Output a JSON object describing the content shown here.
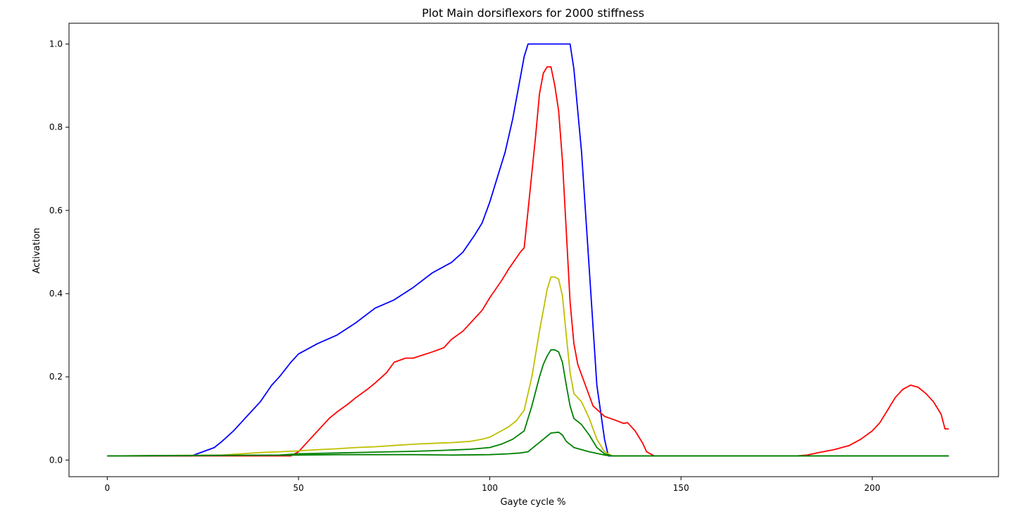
{
  "chart_data": {
    "type": "line",
    "title": "Plot Main dorsiflexors for 2000 stiffness",
    "xlabel": "Gayte cycle %",
    "ylabel": "Activation",
    "xlim": [
      -10,
      233
    ],
    "ylim": [
      -0.04,
      1.05
    ],
    "xticks": [
      0,
      50,
      100,
      150,
      200
    ],
    "yticks": [
      0.0,
      0.2,
      0.4,
      0.6,
      0.8,
      1.0
    ],
    "grid": false,
    "legend": "none",
    "series": [
      {
        "color": "#0000ff",
        "points": [
          [
            0,
            0.01
          ],
          [
            22,
            0.01
          ],
          [
            25,
            0.02
          ],
          [
            28,
            0.03
          ],
          [
            30,
            0.045
          ],
          [
            33,
            0.07
          ],
          [
            35,
            0.09
          ],
          [
            38,
            0.12
          ],
          [
            40,
            0.14
          ],
          [
            43,
            0.18
          ],
          [
            45,
            0.2
          ],
          [
            48,
            0.235
          ],
          [
            50,
            0.255
          ],
          [
            55,
            0.28
          ],
          [
            60,
            0.3
          ],
          [
            65,
            0.33
          ],
          [
            70,
            0.365
          ],
          [
            75,
            0.385
          ],
          [
            80,
            0.415
          ],
          [
            85,
            0.45
          ],
          [
            90,
            0.475
          ],
          [
            93,
            0.5
          ],
          [
            96,
            0.54
          ],
          [
            98,
            0.57
          ],
          [
            100,
            0.62
          ],
          [
            102,
            0.68
          ],
          [
            104,
            0.74
          ],
          [
            106,
            0.82
          ],
          [
            108,
            0.92
          ],
          [
            109,
            0.97
          ],
          [
            110,
            1.0
          ],
          [
            121,
            1.0
          ],
          [
            122,
            0.94
          ],
          [
            124,
            0.74
          ],
          [
            126,
            0.46
          ],
          [
            128,
            0.18
          ],
          [
            130,
            0.05
          ],
          [
            131,
            0.01
          ],
          [
            220,
            0.01
          ]
        ]
      },
      {
        "color": "#ff0000",
        "points": [
          [
            0,
            0.01
          ],
          [
            48,
            0.01
          ],
          [
            50,
            0.02
          ],
          [
            53,
            0.05
          ],
          [
            55,
            0.07
          ],
          [
            58,
            0.1
          ],
          [
            60,
            0.115
          ],
          [
            63,
            0.135
          ],
          [
            65,
            0.15
          ],
          [
            68,
            0.17
          ],
          [
            70,
            0.185
          ],
          [
            73,
            0.21
          ],
          [
            75,
            0.235
          ],
          [
            78,
            0.245
          ],
          [
            80,
            0.245
          ],
          [
            85,
            0.26
          ],
          [
            88,
            0.27
          ],
          [
            90,
            0.29
          ],
          [
            93,
            0.31
          ],
          [
            95,
            0.33
          ],
          [
            98,
            0.36
          ],
          [
            100,
            0.39
          ],
          [
            103,
            0.43
          ],
          [
            105,
            0.46
          ],
          [
            108,
            0.5
          ],
          [
            109,
            0.51
          ],
          [
            110,
            0.6
          ],
          [
            112,
            0.78
          ],
          [
            113,
            0.88
          ],
          [
            114,
            0.93
          ],
          [
            115,
            0.945
          ],
          [
            116,
            0.945
          ],
          [
            117,
            0.9
          ],
          [
            118,
            0.84
          ],
          [
            119,
            0.72
          ],
          [
            120,
            0.55
          ],
          [
            121,
            0.38
          ],
          [
            122,
            0.28
          ],
          [
            123,
            0.23
          ],
          [
            125,
            0.18
          ],
          [
            127,
            0.13
          ],
          [
            130,
            0.105
          ],
          [
            133,
            0.095
          ],
          [
            135,
            0.088
          ],
          [
            136,
            0.09
          ],
          [
            138,
            0.07
          ],
          [
            140,
            0.04
          ],
          [
            141,
            0.02
          ],
          [
            143,
            0.01
          ],
          [
            180,
            0.01
          ],
          [
            183,
            0.012
          ],
          [
            186,
            0.018
          ],
          [
            190,
            0.025
          ],
          [
            194,
            0.035
          ],
          [
            197,
            0.05
          ],
          [
            200,
            0.07
          ],
          [
            202,
            0.09
          ],
          [
            204,
            0.12
          ],
          [
            206,
            0.15
          ],
          [
            208,
            0.17
          ],
          [
            210,
            0.18
          ],
          [
            212,
            0.175
          ],
          [
            214,
            0.16
          ],
          [
            216,
            0.14
          ],
          [
            217,
            0.125
          ],
          [
            218,
            0.11
          ],
          [
            219,
            0.075
          ],
          [
            220,
            0.075
          ]
        ]
      },
      {
        "color": "#bfbf00",
        "points": [
          [
            0,
            0.01
          ],
          [
            30,
            0.012
          ],
          [
            35,
            0.015
          ],
          [
            40,
            0.018
          ],
          [
            45,
            0.02
          ],
          [
            50,
            0.022
          ],
          [
            55,
            0.025
          ],
          [
            60,
            0.027
          ],
          [
            65,
            0.03
          ],
          [
            70,
            0.032
          ],
          [
            75,
            0.035
          ],
          [
            80,
            0.038
          ],
          [
            85,
            0.04
          ],
          [
            90,
            0.042
          ],
          [
            95,
            0.045
          ],
          [
            98,
            0.05
          ],
          [
            100,
            0.055
          ],
          [
            103,
            0.07
          ],
          [
            105,
            0.08
          ],
          [
            107,
            0.095
          ],
          [
            109,
            0.12
          ],
          [
            111,
            0.2
          ],
          [
            113,
            0.31
          ],
          [
            114,
            0.36
          ],
          [
            115,
            0.41
          ],
          [
            116,
            0.44
          ],
          [
            117,
            0.44
          ],
          [
            118,
            0.435
          ],
          [
            119,
            0.395
          ],
          [
            120,
            0.3
          ],
          [
            121,
            0.21
          ],
          [
            122,
            0.16
          ],
          [
            124,
            0.14
          ],
          [
            126,
            0.1
          ],
          [
            128,
            0.05
          ],
          [
            130,
            0.02
          ],
          [
            132,
            0.01
          ],
          [
            220,
            0.01
          ]
        ]
      },
      {
        "color": "#008000",
        "points": [
          [
            0,
            0.01
          ],
          [
            45,
            0.012
          ],
          [
            50,
            0.015
          ],
          [
            60,
            0.017
          ],
          [
            70,
            0.019
          ],
          [
            80,
            0.021
          ],
          [
            90,
            0.024
          ],
          [
            95,
            0.026
          ],
          [
            100,
            0.03
          ],
          [
            103,
            0.038
          ],
          [
            106,
            0.05
          ],
          [
            109,
            0.07
          ],
          [
            111,
            0.13
          ],
          [
            113,
            0.2
          ],
          [
            114,
            0.23
          ],
          [
            115,
            0.25
          ],
          [
            116,
            0.265
          ],
          [
            117,
            0.265
          ],
          [
            118,
            0.26
          ],
          [
            119,
            0.235
          ],
          [
            120,
            0.18
          ],
          [
            121,
            0.13
          ],
          [
            122,
            0.1
          ],
          [
            124,
            0.085
          ],
          [
            126,
            0.06
          ],
          [
            128,
            0.03
          ],
          [
            130,
            0.015
          ],
          [
            132,
            0.01
          ],
          [
            220,
            0.01
          ]
        ]
      },
      {
        "color": "#008000",
        "points": [
          [
            0,
            0.01
          ],
          [
            50,
            0.012
          ],
          [
            60,
            0.013
          ],
          [
            70,
            0.013
          ],
          [
            80,
            0.013
          ],
          [
            90,
            0.012
          ],
          [
            100,
            0.013
          ],
          [
            105,
            0.015
          ],
          [
            108,
            0.017
          ],
          [
            110,
            0.02
          ],
          [
            112,
            0.035
          ],
          [
            114,
            0.05
          ],
          [
            116,
            0.065
          ],
          [
            118,
            0.067
          ],
          [
            119,
            0.06
          ],
          [
            120,
            0.045
          ],
          [
            122,
            0.03
          ],
          [
            126,
            0.02
          ],
          [
            130,
            0.012
          ],
          [
            132,
            0.01
          ],
          [
            220,
            0.01
          ]
        ]
      }
    ]
  }
}
